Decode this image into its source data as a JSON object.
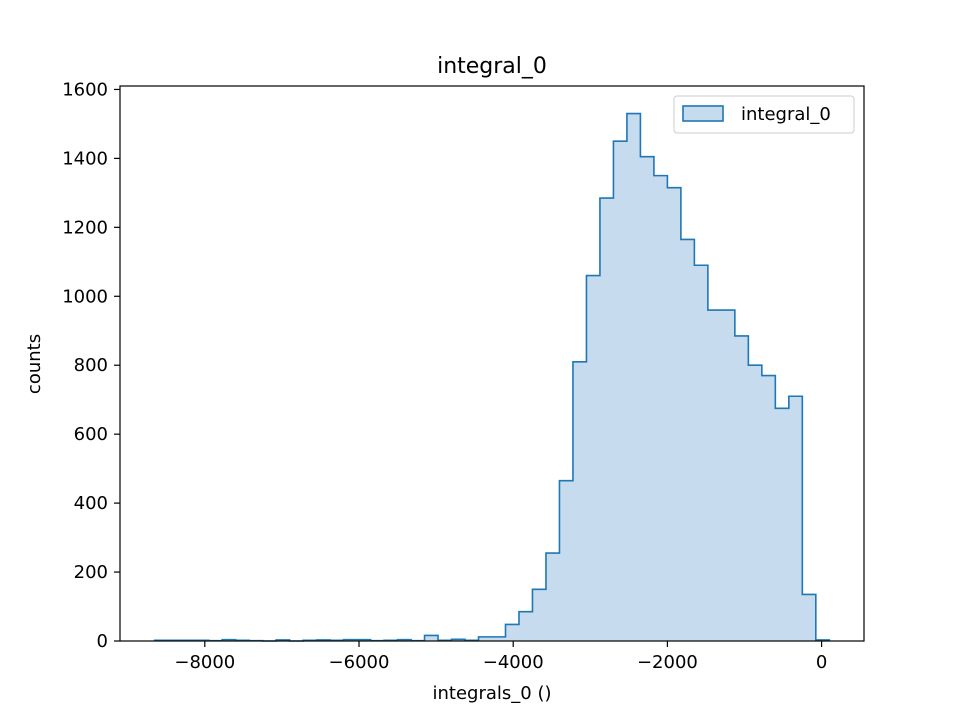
{
  "chart_data": {
    "type": "histogram",
    "title": "integral_0",
    "xlabel": "integrals_0 ()",
    "ylabel": "counts",
    "xlim": [
      -9100,
      550
    ],
    "ylim": [
      0,
      1610
    ],
    "xticks": [
      -8000,
      -6000,
      -4000,
      -2000,
      0
    ],
    "xtick_labels": [
      "−8000",
      "−6000",
      "−4000",
      "−2000",
      "0"
    ],
    "yticks": [
      0,
      200,
      400,
      600,
      800,
      1000,
      1200,
      1400,
      1600
    ],
    "ytick_labels": [
      "0",
      "200",
      "400",
      "600",
      "800",
      "1000",
      "1200",
      "1400",
      "1600"
    ],
    "grid": false,
    "legend_position": "top-right",
    "series": [
      {
        "name": "integral_0",
        "fill_color": "#c6dbed",
        "line_color": "#1f77b4",
        "bin_edges": [
          -8650,
          -8475,
          -8300,
          -8125,
          -7950,
          -7775,
          -7600,
          -7425,
          -7250,
          -7075,
          -6900,
          -6725,
          -6550,
          -6375,
          -6200,
          -6025,
          -5850,
          -5675,
          -5500,
          -5325,
          -5150,
          -4975,
          -4800,
          -4625,
          -4450,
          -4275,
          -4100,
          -3925,
          -3750,
          -3575,
          -3400,
          -3225,
          -3050,
          -2875,
          -2700,
          -2525,
          -2350,
          -2175,
          -2000,
          -1825,
          -1650,
          -1475,
          -1300,
          -1125,
          -950,
          -775,
          -600,
          -425,
          -250,
          -75,
          100
        ],
        "counts": [
          2,
          2,
          2,
          2,
          1,
          4,
          2,
          1,
          0,
          3,
          0,
          2,
          3,
          2,
          4,
          4,
          1,
          2,
          4,
          1,
          16,
          2,
          5,
          2,
          12,
          12,
          48,
          85,
          150,
          255,
          465,
          810,
          1060,
          1285,
          1450,
          1530,
          1405,
          1350,
          1315,
          1165,
          1090,
          960,
          960,
          885,
          800,
          770,
          675,
          710,
          135,
          3
        ]
      }
    ]
  }
}
